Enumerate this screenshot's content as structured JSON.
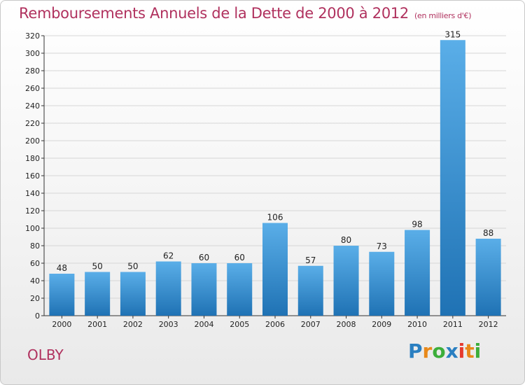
{
  "header": {
    "title": "Remboursements Annuels de la Dette de 2000 à 2012",
    "unit": "(en milliers d'€)"
  },
  "footer": {
    "commune": "OLBY",
    "logo": [
      "P",
      "r",
      "o",
      "x",
      "i",
      "t",
      "i"
    ],
    "logo_colors": [
      "#2a7fc1",
      "#e8891a",
      "#3cae3a",
      "#2a7fc1",
      "#e63a2e",
      "#e8891a",
      "#3cae3a"
    ]
  },
  "colors": {
    "bar_top": "#5aaee8",
    "bar_bottom": "#1f72b4",
    "title": "#b0315e",
    "grid": "#d6d6d6"
  },
  "chart_data": {
    "type": "bar",
    "categories": [
      "2000",
      "2001",
      "2002",
      "2003",
      "2004",
      "2005",
      "2006",
      "2007",
      "2008",
      "2009",
      "2010",
      "2011",
      "2012"
    ],
    "values": [
      48,
      50,
      50,
      62,
      60,
      60,
      106,
      57,
      80,
      73,
      98,
      315,
      88
    ],
    "title": "Remboursements Annuels de la Dette de 2000 à 2012",
    "subtitle": "(en milliers d'€)",
    "ylim": [
      0,
      320
    ],
    "yticks": [
      0,
      20,
      40,
      60,
      80,
      100,
      120,
      140,
      160,
      180,
      200,
      220,
      240,
      260,
      280,
      300,
      320
    ],
    "grid": true
  }
}
